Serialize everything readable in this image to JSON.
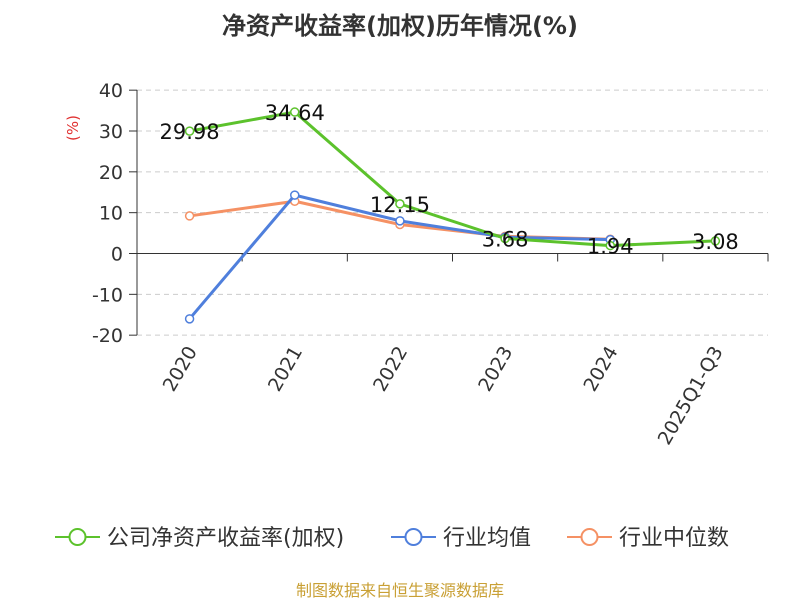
{
  "chart_data": {
    "type": "line",
    "title": "净资产收益率(加权)历年情况(%)",
    "xlabel": "",
    "ylabel": "(%)",
    "ylim": [
      -20,
      40
    ],
    "yticks": [
      40,
      30,
      20,
      10,
      0,
      -10,
      -20
    ],
    "grid": true,
    "legend_position": "bottom",
    "categories": [
      "2020",
      "2021",
      "2022",
      "2023",
      "2024",
      "2025Q1-Q3"
    ],
    "series": [
      {
        "name": "公司净资产收益率(加权)",
        "color": "#5cc22c",
        "values": [
          29.98,
          34.64,
          12.15,
          3.68,
          1.94,
          3.08
        ],
        "labels": [
          "29.98",
          "34.64",
          "12.15",
          "3.68",
          "1.94",
          "3.08"
        ]
      },
      {
        "name": "行业均值",
        "color": "#4f7fdc",
        "values": [
          -16.0,
          14.3,
          8.0,
          4.0,
          3.4,
          null
        ]
      },
      {
        "name": "行业中位数",
        "color": "#f59164",
        "values": [
          9.2,
          12.8,
          7.1,
          4.2,
          3.5,
          null
        ]
      }
    ]
  },
  "footer": "制图数据来自恒生聚源数据库"
}
